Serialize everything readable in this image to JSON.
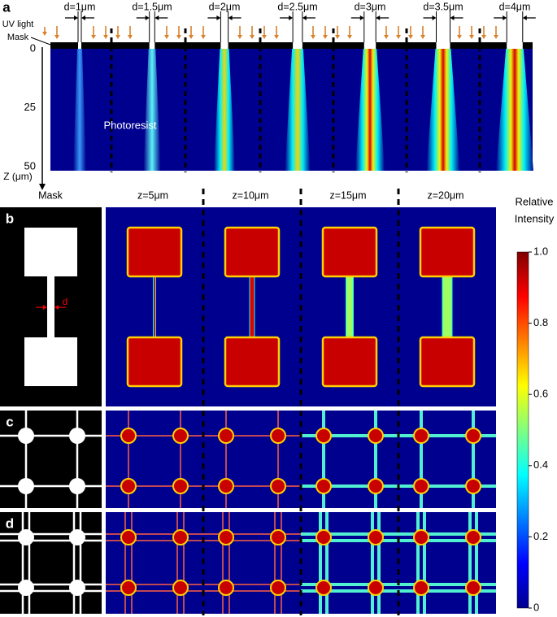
{
  "panel_a": {
    "label": "a",
    "openings": [
      "d=1μm",
      "d=1.5μm",
      "d=2μm",
      "d=2.5μm",
      "d=3μm",
      "d=3.5μm",
      "d=4μm"
    ],
    "uv_light": "UV light",
    "mask": "Mask",
    "material": "Photoresist",
    "z_axis": "Z (μm)",
    "zlim": [
      0,
      50
    ],
    "zticks": [
      0,
      25,
      50
    ]
  },
  "column_headers": [
    "Mask",
    "z=5μm",
    "z=10μm",
    "z=15μm",
    "z=20μm"
  ],
  "panel_b": {
    "label": "b",
    "d_label": "d"
  },
  "panel_c": {
    "label": "c"
  },
  "panel_d": {
    "label": "d"
  },
  "colorbar": {
    "title": [
      "Relative",
      "Intensity"
    ],
    "range": [
      0,
      1
    ],
    "ticks": [
      {
        "value": 1,
        "label": "1.0"
      },
      0.8,
      0.6,
      0.4,
      0.2,
      0
    ]
  }
}
